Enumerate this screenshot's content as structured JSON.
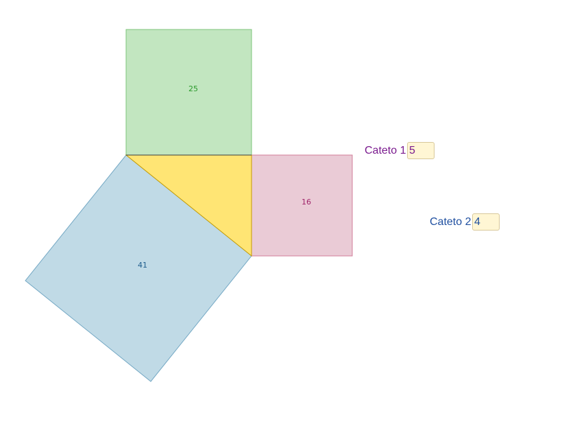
{
  "squares": [
    {
      "area": "25"
    },
    {
      "area": "16"
    },
    {
      "area": "41"
    }
  ],
  "inputs": [
    {
      "label": "Cateto 1",
      "value": "5"
    },
    {
      "label": "Cateto 2",
      "value": "4"
    }
  ]
}
